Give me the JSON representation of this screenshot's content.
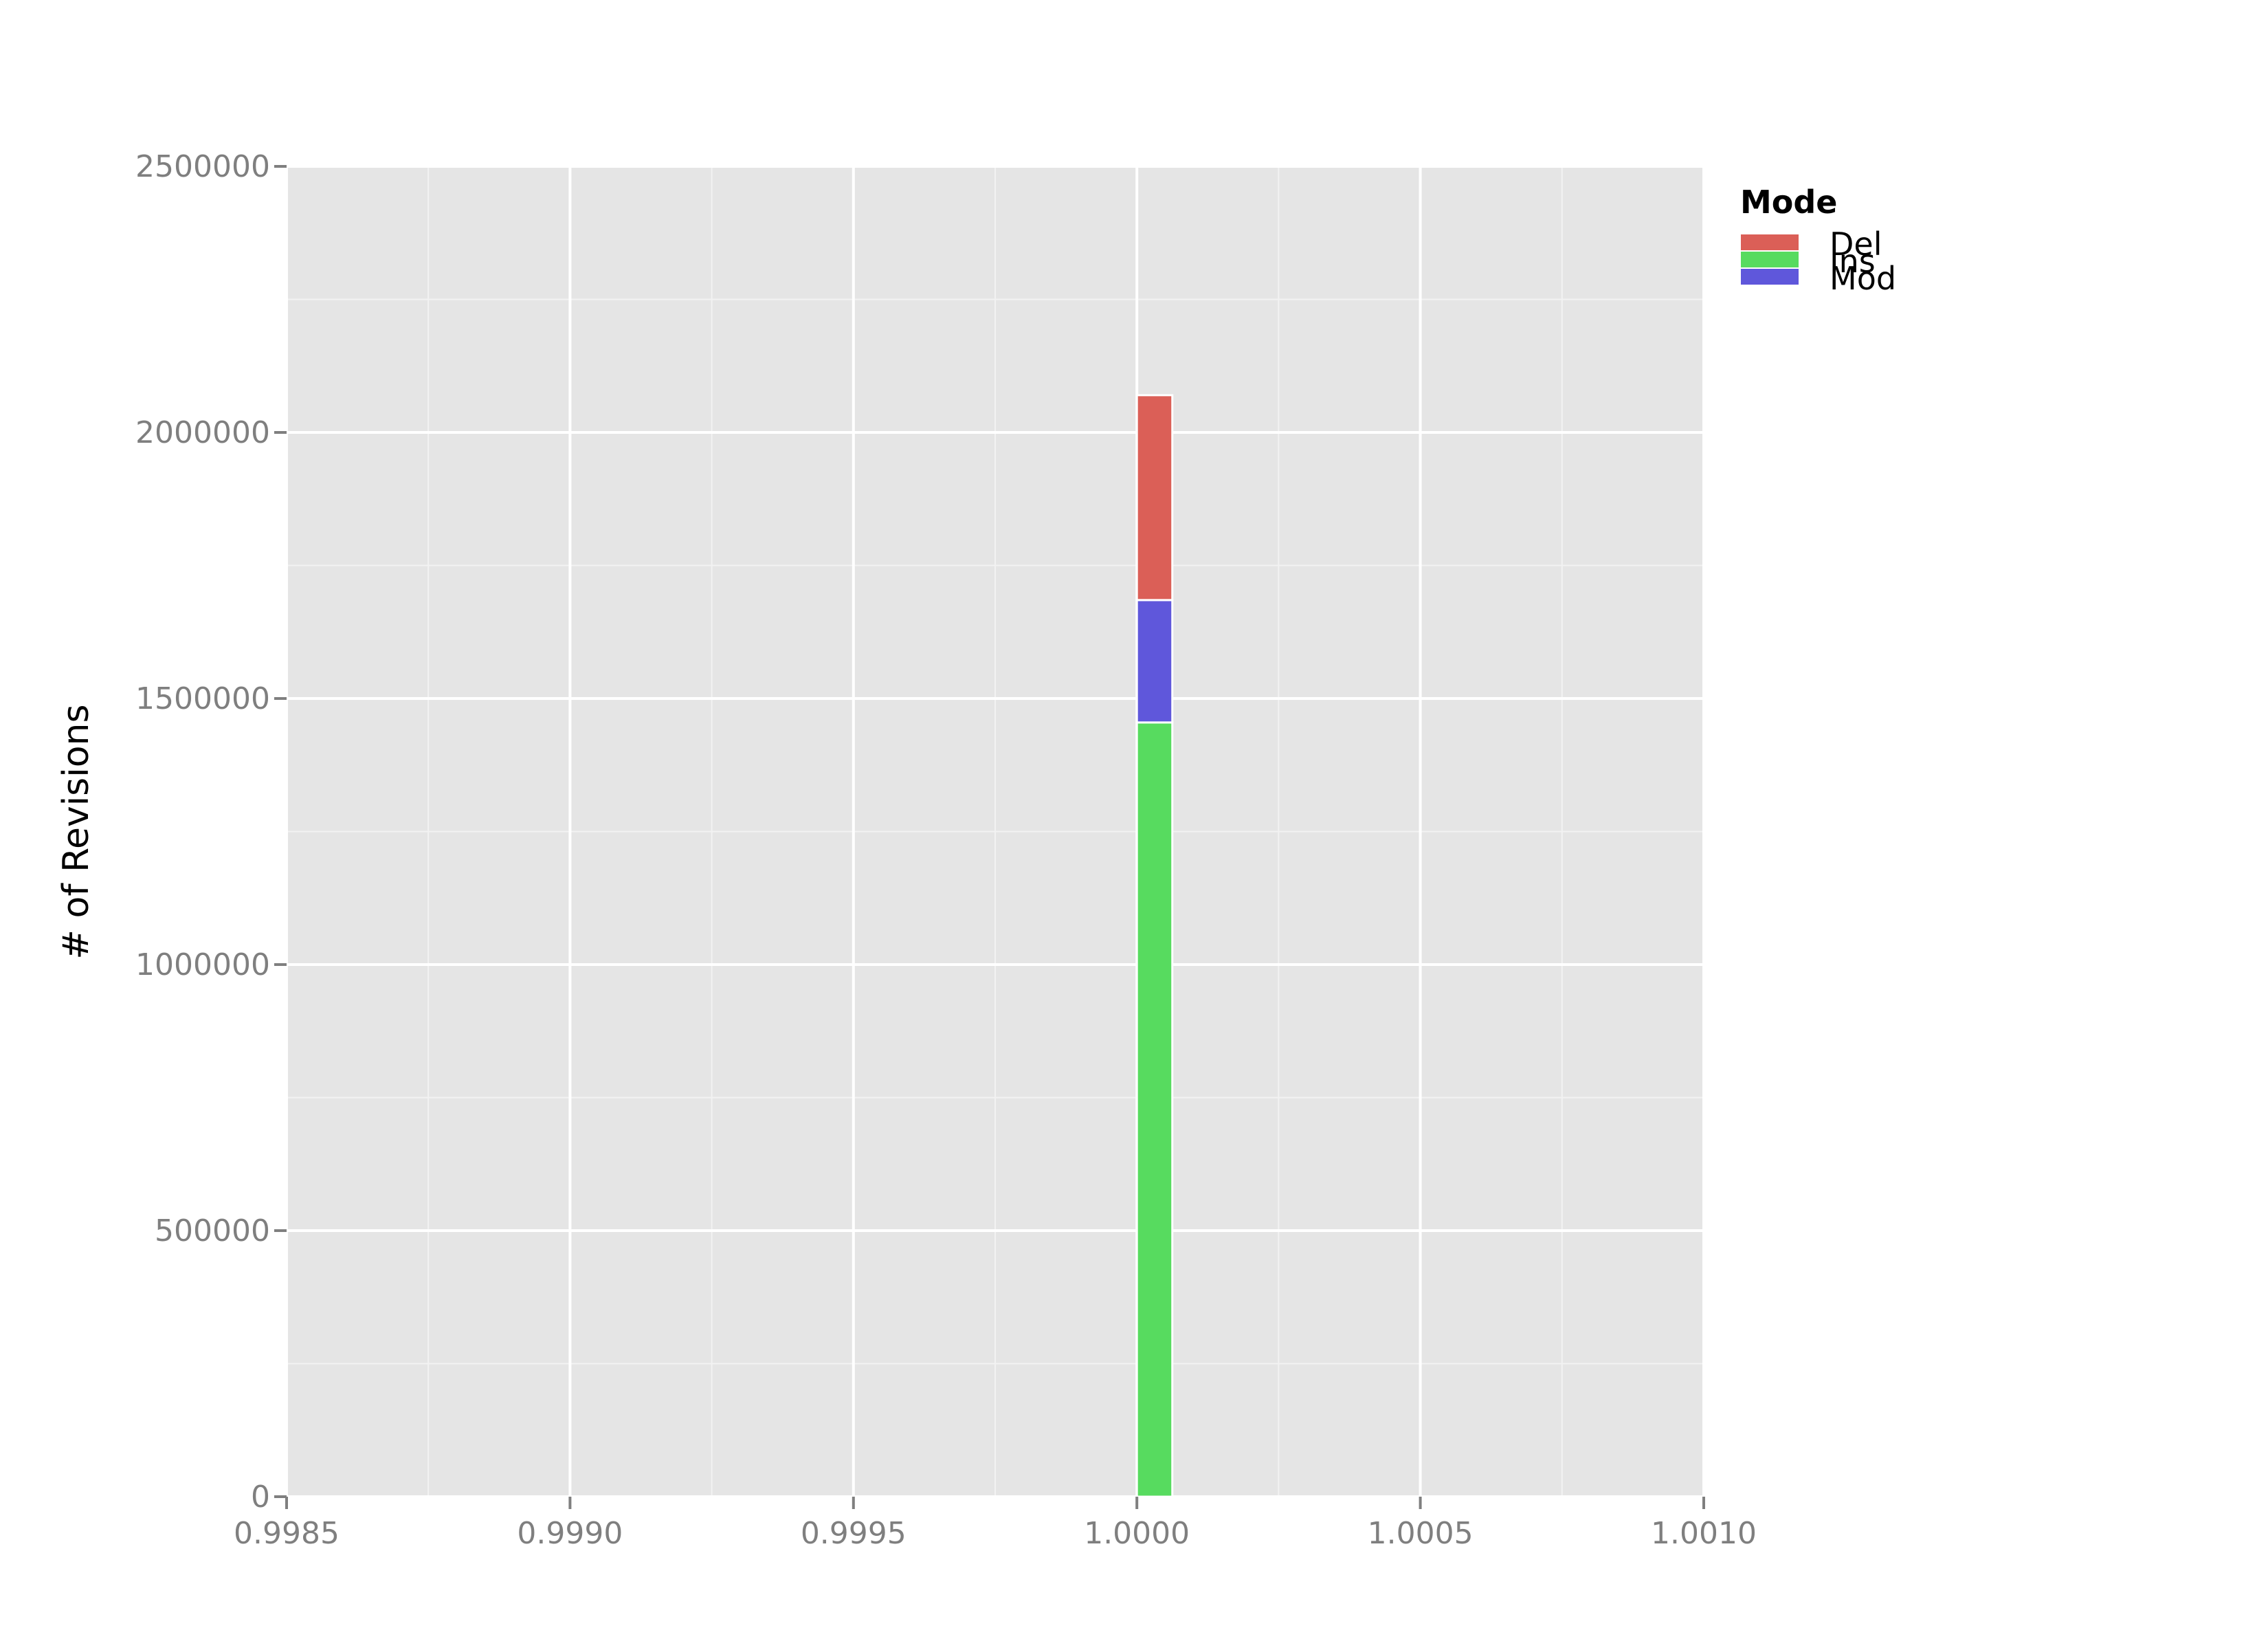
{
  "chart_data": {
    "type": "bar",
    "subtype": "stacked-histogram",
    "xlabel": "",
    "ylabel": "# of Revisions",
    "xlim": [
      0.9985,
      1.001
    ],
    "ylim": [
      0,
      2500000
    ],
    "x_ticks": [
      0.9985,
      0.999,
      0.9995,
      1.0,
      1.0005,
      1.001
    ],
    "x_tick_labels": [
      "0.9985",
      "0.9990",
      "0.9995",
      "1.0000",
      "1.0005",
      "1.0010"
    ],
    "y_ticks": [
      0,
      500000,
      1000000,
      1500000,
      2000000,
      2500000
    ],
    "y_tick_labels": [
      "0",
      "500000",
      "1000000",
      "1500000",
      "2000000",
      "2500000"
    ],
    "grid": true,
    "legend": {
      "title": "Mode",
      "placement": "right",
      "entries": [
        "Del",
        "Ins",
        "Mod"
      ]
    },
    "bin": {
      "start": 1.0,
      "end": 1.0000625
    },
    "stack_order": [
      "Ins",
      "Mod",
      "Del"
    ],
    "series": [
      {
        "name": "Del",
        "values": [
          385000
        ],
        "color": "#db5f57"
      },
      {
        "name": "Ins",
        "values": [
          1455000
        ],
        "color": "#57db5f"
      },
      {
        "name": "Mod",
        "values": [
          230000
        ],
        "color": "#5f57db"
      }
    ],
    "colors": {
      "panel_background": "#e5e5e5",
      "grid_major": "#ffffff",
      "grid_minor": "#f2f2f2",
      "tick_text": "#7f7f7f"
    }
  }
}
